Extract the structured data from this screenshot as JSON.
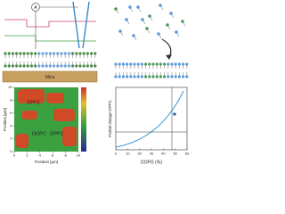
{
  "schematic": {
    "ammeter": "A",
    "substrate": "Mica"
  },
  "afm": {
    "domains": [
      "DPPC",
      "DOPC",
      "DPPC"
    ],
    "x_label": "Position [μm]",
    "y_label": "Position [μm]",
    "xticks": [
      0,
      2,
      4,
      6,
      8,
      10
    ],
    "yticks": [
      0,
      2,
      4,
      6,
      8,
      10
    ],
    "xlim": [
      0,
      10
    ],
    "ylim": [
      0,
      10
    ]
  },
  "chart": {
    "x_label": "DOPG (%)",
    "y_label": "Partial charge DPPC",
    "xticks": [
      0,
      10,
      20,
      30,
      40,
      50,
      60
    ],
    "xlim": [
      0,
      60
    ]
  }
}
